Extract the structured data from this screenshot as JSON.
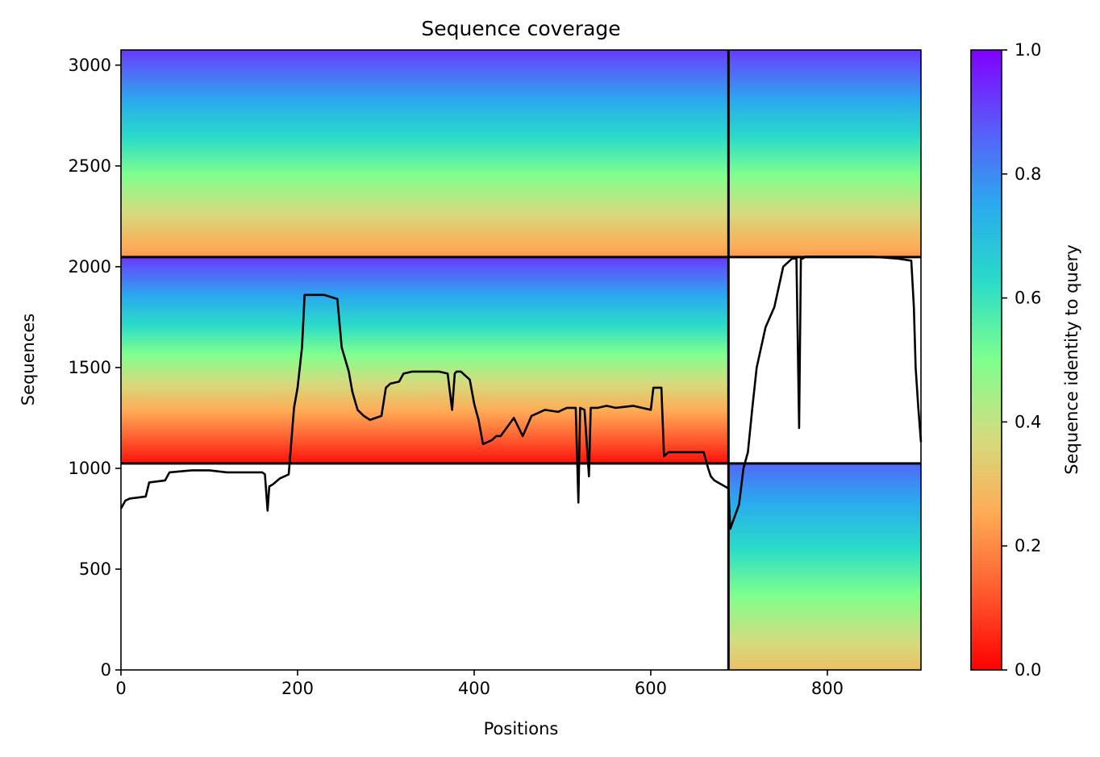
{
  "chart_data": {
    "type": "heatmap",
    "title": "Sequence coverage",
    "xlabel": "Positions",
    "ylabel": "Sequences",
    "xlim": [
      0,
      906
    ],
    "ylim": [
      0,
      3075
    ],
    "x_ticks": [
      0,
      200,
      400,
      600,
      800
    ],
    "y_ticks": [
      0,
      500,
      1000,
      1500,
      2000,
      2500,
      3000
    ],
    "colorbar": {
      "label": "Sequence identity to query",
      "colormap": "rainbow",
      "range": [
        0,
        1
      ],
      "ticks": [
        "0.0",
        "0.2",
        "0.4",
        "0.6",
        "0.8",
        "1.0"
      ]
    },
    "chain_boundary_positions": [
      688
    ],
    "block_boundary_sequences": [
      1024,
      2048
    ],
    "blocks": [
      {
        "x_range": [
          0,
          688
        ],
        "y_range": [
          2048,
          3075
        ],
        "identity_bottom": 0.22,
        "identity_top": 0.92
      },
      {
        "x_range": [
          688,
          906
        ],
        "y_range": [
          2048,
          3075
        ],
        "identity_bottom": 0.22,
        "identity_top": 0.92
      },
      {
        "x_range": [
          0,
          688
        ],
        "y_range": [
          1024,
          2048
        ],
        "identity_bottom": 0.02,
        "identity_top": 0.92
      },
      {
        "x_range": [
          688,
          906
        ],
        "y_range": [
          0,
          1024
        ],
        "identity_bottom": 0.3,
        "identity_top": 0.85
      }
    ],
    "coverage_line": {
      "x": [
        0,
        5,
        10,
        28,
        32,
        50,
        55,
        80,
        100,
        120,
        150,
        160,
        163,
        166,
        168,
        172,
        180,
        190,
        196,
        200,
        205,
        208,
        215,
        230,
        245,
        250,
        258,
        262,
        268,
        275,
        282,
        295,
        300,
        305,
        315,
        320,
        330,
        345,
        360,
        370,
        375,
        378,
        380,
        385,
        395,
        400,
        405,
        410,
        415,
        420,
        425,
        430,
        445,
        455,
        465,
        480,
        495,
        505,
        515,
        518,
        520,
        525,
        530,
        532,
        540,
        550,
        560,
        580,
        600,
        603,
        610,
        612,
        615,
        620,
        640,
        660,
        665,
        668,
        672,
        680,
        688,
        690,
        700,
        705,
        710,
        715,
        720,
        730,
        740,
        750,
        760,
        765,
        768,
        770,
        772,
        775,
        790,
        820,
        850,
        880,
        895,
        898,
        900,
        903,
        906
      ],
      "y": [
        800,
        840,
        850,
        860,
        930,
        940,
        980,
        990,
        990,
        980,
        980,
        980,
        970,
        790,
        910,
        920,
        950,
        970,
        1300,
        1400,
        1600,
        1860,
        1860,
        1860,
        1840,
        1600,
        1480,
        1380,
        1290,
        1260,
        1240,
        1260,
        1400,
        1420,
        1430,
        1470,
        1480,
        1480,
        1480,
        1470,
        1290,
        1470,
        1480,
        1480,
        1440,
        1320,
        1240,
        1120,
        1130,
        1140,
        1160,
        1160,
        1250,
        1160,
        1260,
        1290,
        1280,
        1300,
        1300,
        830,
        1300,
        1290,
        960,
        1300,
        1300,
        1310,
        1300,
        1310,
        1290,
        1400,
        1400,
        1400,
        1060,
        1080,
        1080,
        1080,
        1000,
        960,
        940,
        920,
        900,
        700,
        820,
        1000,
        1080,
        1300,
        1500,
        1700,
        1800,
        2000,
        2040,
        2040,
        1200,
        2040,
        2040,
        2050,
        2050,
        2050,
        2050,
        2040,
        2030,
        1800,
        1500,
        1300,
        1130
      ]
    }
  }
}
